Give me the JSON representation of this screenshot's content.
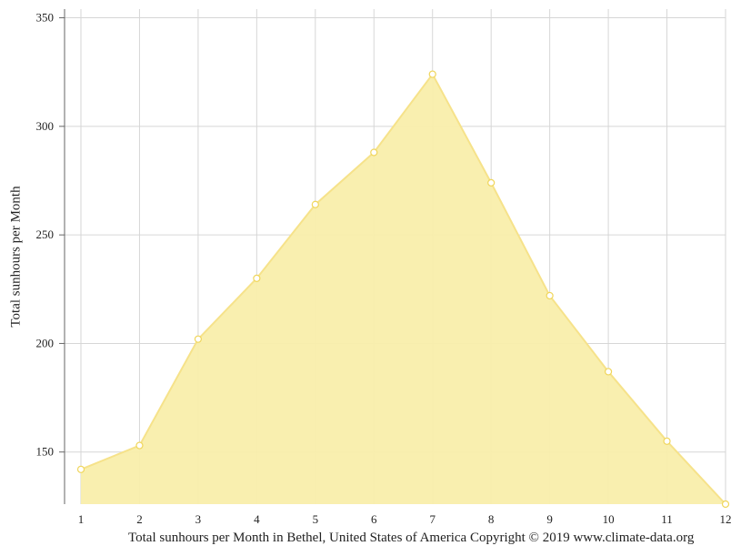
{
  "chart_data": {
    "type": "area",
    "x": [
      1,
      2,
      3,
      4,
      5,
      6,
      7,
      8,
      9,
      10,
      11,
      12
    ],
    "values": [
      142,
      153,
      202,
      230,
      264,
      288,
      324,
      274,
      222,
      187,
      155,
      126
    ],
    "ylabel": "Total sunhours per Month",
    "xlabel": "",
    "ylim": [
      126,
      354
    ],
    "yticks": [
      150,
      200,
      250,
      300,
      350
    ],
    "grid": true,
    "fill_color": "#f9eeab",
    "line_color": "#f6e28a",
    "marker_color": "#ffffff"
  },
  "caption": "Total sunhours per Month in Bethel, United States of America Copyright © 2019 www.climate-data.org"
}
